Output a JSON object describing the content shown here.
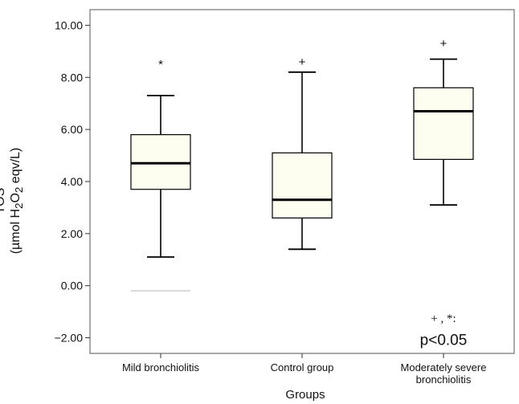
{
  "chart_data": {
    "type": "boxplot",
    "xlabel": "Groups",
    "ylabel_line1": "TOS",
    "ylabel_line2_pre": "(µmol H",
    "ylabel_sub1": "2",
    "ylabel_mid": "O",
    "ylabel_sub2": "2",
    "ylabel_post": " eqv/L)",
    "ylim": [
      -2.6,
      10.6
    ],
    "yticks": [
      -2,
      0,
      2,
      4,
      6,
      8,
      10
    ],
    "ytick_labels": [
      "−2.00",
      "0.00",
      "2.00",
      "4.00",
      "6.00",
      "8.00",
      "10.00"
    ],
    "grid": false,
    "series": [
      {
        "category": "Mild bronchiolitis",
        "category_lines": [
          "Mild bronchiolitis"
        ],
        "min": 1.1,
        "q1": 3.7,
        "median": 4.7,
        "q3": 5.8,
        "max": 7.3,
        "outliers": [
          {
            "value": 8.5,
            "marker": "*"
          }
        ],
        "extra_line": -0.2
      },
      {
        "category": "Control group",
        "category_lines": [
          "Control group"
        ],
        "min": 1.4,
        "q1": 2.6,
        "median": 3.3,
        "q3": 5.1,
        "max": 8.2,
        "outliers": [
          {
            "value": 8.6,
            "marker": "+"
          }
        ]
      },
      {
        "category": "Moderately severe bronchiolitis",
        "category_lines": [
          "Moderately severe",
          "bronchiolitis"
        ],
        "min": 3.1,
        "q1": 4.85,
        "median": 6.7,
        "q3": 7.6,
        "max": 8.7,
        "outliers": [
          {
            "value": 9.3,
            "marker": "+"
          }
        ]
      }
    ],
    "annotation_line1": "+ , *:",
    "annotation_line2": "p<0.05",
    "colors": {
      "box_fill": "#fdfdf0",
      "stroke": "#000000",
      "frame": "#555555",
      "extra_line": "#d9d9d9"
    }
  }
}
